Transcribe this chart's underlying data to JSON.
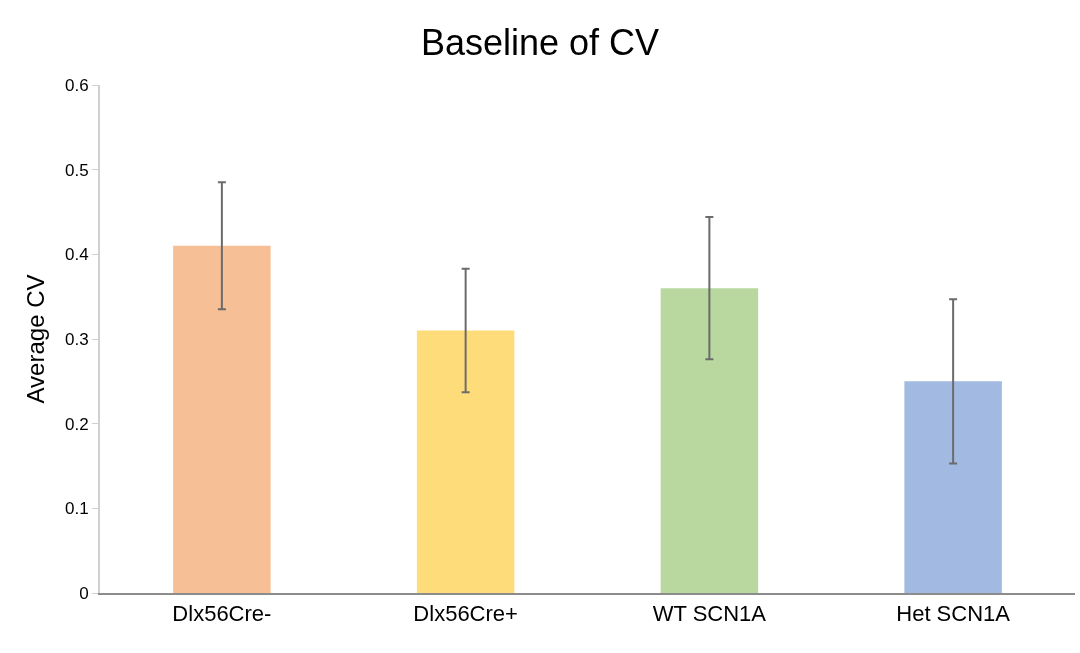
{
  "chart_data": {
    "type": "bar",
    "title": "Baseline of CV",
    "ylabel": "Average CV",
    "categories": [
      "Dlx56Cre-",
      "Dlx56Cre+",
      "WT SCN1A",
      "Het SCN1A"
    ],
    "values": [
      0.41,
      0.31,
      0.36,
      0.25
    ],
    "errors": [
      0.075,
      0.073,
      0.084,
      0.097
    ],
    "colors": [
      "#f6bf95",
      "#fedc7a",
      "#b8d8a0",
      "#a2bae2"
    ],
    "ylim": [
      0,
      0.6
    ],
    "yticks": [
      0,
      0.1,
      0.2,
      0.3,
      0.4,
      0.5,
      0.6
    ]
  }
}
